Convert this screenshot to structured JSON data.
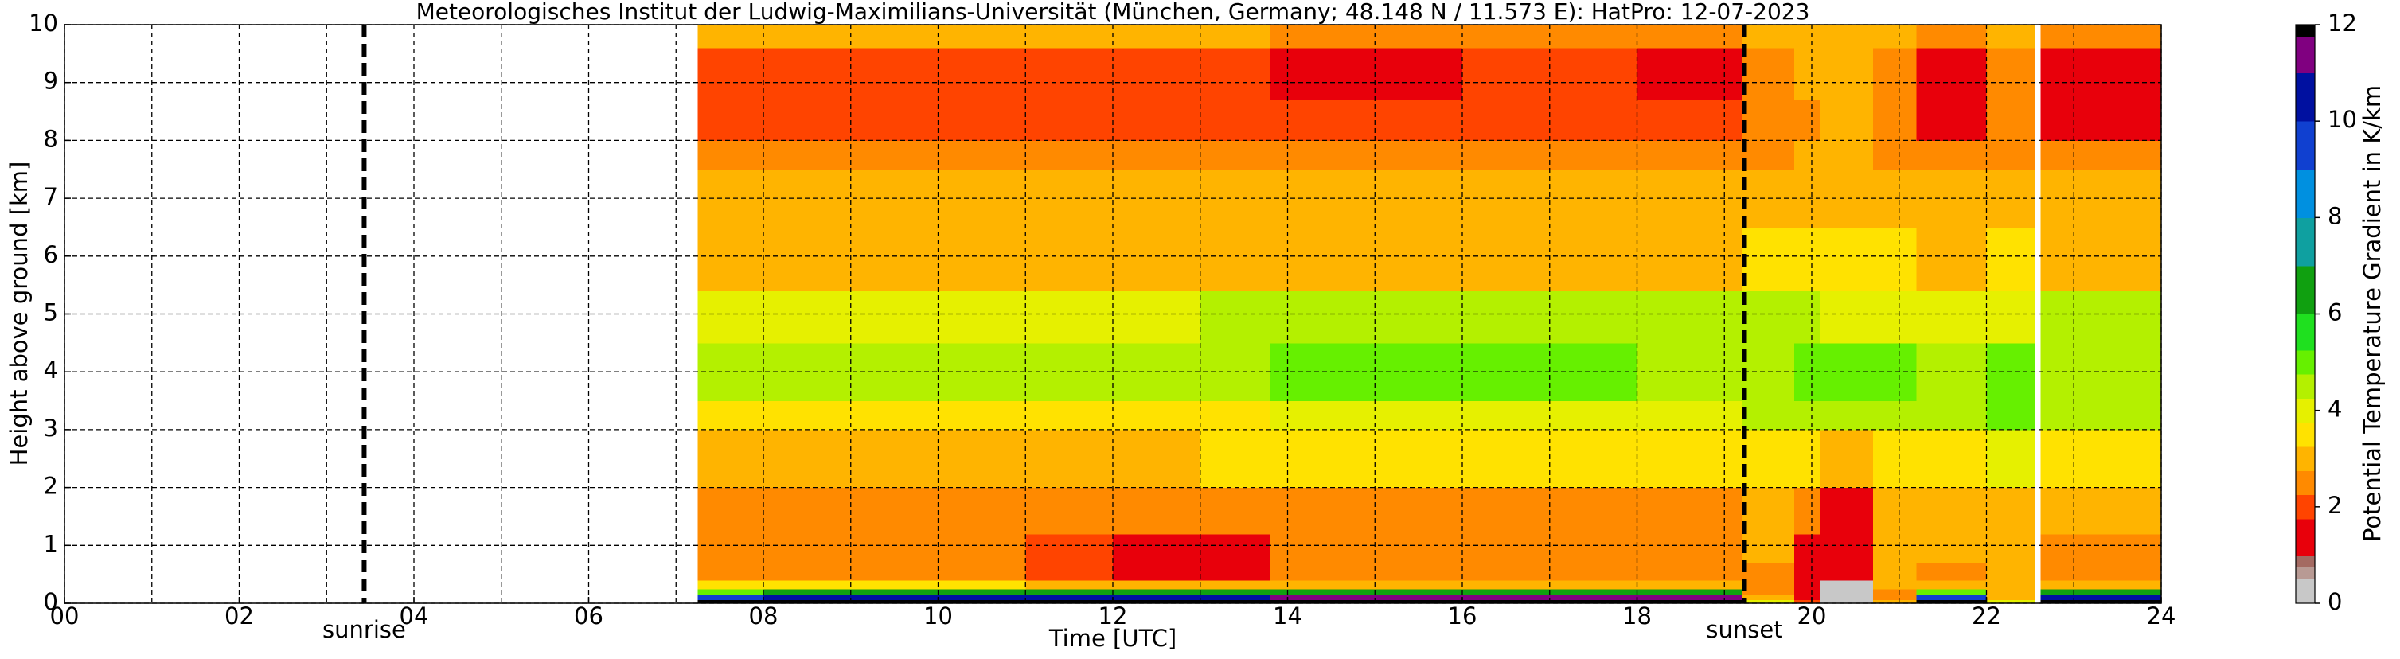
{
  "chart_data": {
    "type": "heatmap",
    "title": "Meteorologisches Institut der Ludwig-Maximilians-Universität (München, Germany; 48.148 N / 11.573 E):    HatPro: 12-07-2023",
    "xlabel": "Time [UTC]",
    "ylabel": "Height above ground [km]",
    "colorbar_label": "Potential Temperature Gradient in K/km",
    "xlim": [
      0,
      24
    ],
    "ylim": [
      0,
      10
    ],
    "xticks": [
      {
        "value": 0,
        "label": "00"
      },
      {
        "value": 2,
        "label": "02"
      },
      {
        "value": 4,
        "label": "04"
      },
      {
        "value": 6,
        "label": "06"
      },
      {
        "value": 8,
        "label": "08"
      },
      {
        "value": 10,
        "label": "10"
      },
      {
        "value": 12,
        "label": "12"
      },
      {
        "value": 14,
        "label": "14"
      },
      {
        "value": 16,
        "label": "16"
      },
      {
        "value": 18,
        "label": "18"
      },
      {
        "value": 20,
        "label": "20"
      },
      {
        "value": 22,
        "label": "22"
      },
      {
        "value": 24,
        "label": "24"
      }
    ],
    "xminorticks": [
      1,
      3,
      5,
      7,
      9,
      11,
      13,
      15,
      17,
      19,
      21,
      23
    ],
    "yticks": [
      0,
      1,
      2,
      3,
      4,
      5,
      6,
      7,
      8,
      9,
      10
    ],
    "grid": true,
    "clim": [
      0,
      12
    ],
    "cticks": [
      0,
      2,
      4,
      6,
      8,
      10,
      12
    ],
    "colormap": {
      "bounds": [
        0,
        0.5,
        0.75,
        1,
        1.75,
        2.25,
        2.75,
        3.25,
        3.75,
        4.25,
        4.75,
        5.25,
        6,
        7,
        8,
        9,
        10,
        11,
        11.75,
        12
      ],
      "colors": [
        "#c8c8c8",
        "#b89a94",
        "#a46a62",
        "#e8000b",
        "#ff4400",
        "#ff8a00",
        "#ffb400",
        "#ffe200",
        "#e6f000",
        "#b4f000",
        "#66f000",
        "#1fe01f",
        "#10a010",
        "#0fa0a0",
        "#0090e0",
        "#1040d0",
        "#0010a0",
        "#800080",
        "#000000"
      ]
    },
    "xbins": [
      7.25,
      8,
      9,
      10,
      11,
      12,
      13,
      13.8,
      15,
      16,
      17,
      18,
      19.2,
      19.8,
      20.1,
      20.7,
      21.2,
      22,
      22.55,
      22.62,
      24
    ],
    "ybins": [
      0,
      0.06,
      0.15,
      0.25,
      0.4,
      0.7,
      1.2,
      2,
      3,
      3.5,
      4.5,
      5.4,
      6.5,
      7.5,
      8,
      8.7,
      9.6,
      10
    ],
    "values": [
      [
        12,
        12,
        12,
        12,
        12,
        12,
        12,
        12,
        12,
        12,
        12,
        12,
        4,
        2,
        0.3,
        3,
        12,
        4,
        null,
        12
      ],
      [
        9,
        10,
        10,
        10,
        10,
        10,
        10,
        11,
        11,
        11,
        11,
        11,
        3,
        1.5,
        0.3,
        2.5,
        9,
        3,
        null,
        10
      ],
      [
        5,
        6,
        6,
        6,
        6,
        6,
        6,
        6,
        6,
        6,
        6,
        6,
        2.5,
        1.5,
        0.3,
        2.5,
        5,
        2.8,
        null,
        6
      ],
      [
        3.5,
        3.5,
        3.5,
        3.5,
        3.2,
        3,
        3,
        3.2,
        3.2,
        3.2,
        3.2,
        3.2,
        2.6,
        1.5,
        0.3,
        2.8,
        3,
        2.8,
        null,
        3.2
      ],
      [
        2.6,
        2.6,
        2.6,
        2.6,
        1.8,
        1.5,
        1.6,
        2.6,
        2.6,
        2.6,
        2.6,
        2.6,
        2.6,
        1.5,
        1.5,
        2.8,
        2.7,
        2.8,
        null,
        2.6
      ],
      [
        2.6,
        2.6,
        2.6,
        2.6,
        2.2,
        1.6,
        1.7,
        2.6,
        2.6,
        2.6,
        2.6,
        2.6,
        2.8,
        1.6,
        1.5,
        3,
        2.8,
        3,
        null,
        2.7
      ],
      [
        2.6,
        2.6,
        2.6,
        2.6,
        2.6,
        2.5,
        2.6,
        2.7,
        2.7,
        2.7,
        2.7,
        2.7,
        3,
        2.6,
        1.6,
        3,
        3,
        3.2,
        null,
        2.9
      ],
      [
        3.2,
        3.2,
        3.2,
        3.2,
        3.2,
        3.2,
        3.3,
        3.3,
        3.3,
        3.3,
        3.3,
        3.3,
        3.5,
        3.5,
        3,
        3.5,
        3.5,
        3.8,
        null,
        3.5
      ],
      [
        3.6,
        3.6,
        3.6,
        3.6,
        3.6,
        3.6,
        3.7,
        3.8,
        3.8,
        3.8,
        3.8,
        3.8,
        4.4,
        4.5,
        4.5,
        4.5,
        4.4,
        4.8,
        null,
        4.5
      ],
      [
        4.3,
        4.3,
        4.3,
        4.3,
        4.3,
        4.3,
        4.4,
        4.8,
        4.8,
        4.8,
        4.8,
        4.4,
        4.6,
        5,
        5,
        4.8,
        4.6,
        4.8,
        null,
        4.7
      ],
      [
        4.2,
        4.2,
        4.2,
        4.2,
        4.2,
        4.2,
        4.3,
        4.5,
        4.5,
        4.5,
        4.5,
        4.5,
        4.3,
        4.5,
        4.2,
        4,
        4.2,
        4.2,
        null,
        4.3
      ],
      [
        3.2,
        3.2,
        3.2,
        3.2,
        3.2,
        3.2,
        3.2,
        3.2,
        3.2,
        3.2,
        3.2,
        3.2,
        3.3,
        3.5,
        3.5,
        3.3,
        3.2,
        3.3,
        null,
        3.2
      ],
      [
        2.8,
        2.8,
        2.8,
        2.8,
        2.8,
        2.8,
        2.8,
        2.9,
        2.9,
        2.9,
        2.9,
        2.9,
        2.9,
        3,
        3,
        2.8,
        2.8,
        2.9,
        null,
        2.8
      ],
      [
        2.6,
        2.6,
        2.6,
        2.6,
        2.6,
        2.6,
        2.6,
        2.5,
        2.5,
        2.5,
        2.5,
        2.5,
        2.6,
        2.8,
        3,
        2.6,
        2.5,
        2.6,
        null,
        2.5
      ],
      [
        1.9,
        2,
        2,
        2,
        2,
        2,
        2,
        1.8,
        1.8,
        2,
        2,
        1.8,
        2.4,
        2.6,
        2.8,
        2.4,
        1.5,
        2.4,
        null,
        1.5
      ],
      [
        1.8,
        1.8,
        1.8,
        1.8,
        1.8,
        1.8,
        1.8,
        1.6,
        1.6,
        1.8,
        1.8,
        1.6,
        2.6,
        2.8,
        2.8,
        2.4,
        1.5,
        2.6,
        null,
        1.5
      ],
      [
        2.8,
        2.8,
        2.8,
        2.8,
        2.8,
        2.8,
        2.8,
        2.6,
        2.6,
        2.6,
        2.6,
        2.6,
        2.8,
        3,
        3,
        2.8,
        2.6,
        2.8,
        null,
        2.6
      ]
    ],
    "annotations": [
      {
        "x": 3.43,
        "label": "sunrise"
      },
      {
        "x": 19.23,
        "label": "sunset"
      }
    ]
  }
}
